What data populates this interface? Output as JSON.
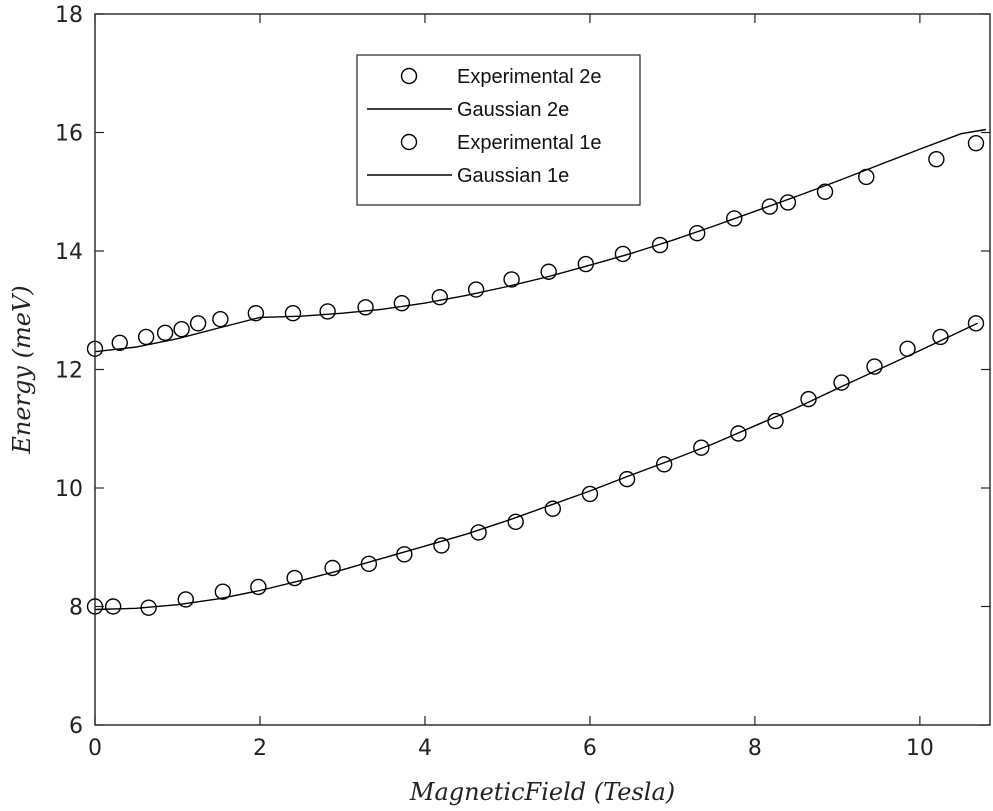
{
  "chart_data": {
    "type": "scatter",
    "xlabel": "MagneticField (Tesla)",
    "ylabel": "Energy (meV)",
    "xlim": [
      0,
      10.85
    ],
    "ylim": [
      6,
      18
    ],
    "xticks": [
      0,
      2,
      4,
      6,
      8,
      10
    ],
    "yticks": [
      6,
      8,
      10,
      12,
      14,
      16,
      18
    ],
    "grid": false,
    "legend_position": "top-center",
    "series": [
      {
        "name": "Experimental 2e",
        "style": "markers",
        "marker": "open-circle",
        "color": "#000000",
        "x": [
          0.0,
          0.3,
          0.62,
          0.85,
          1.05,
          1.25,
          1.52,
          1.95,
          2.4,
          2.82,
          3.28,
          3.72,
          4.18,
          4.62,
          5.05,
          5.5,
          5.95,
          6.4,
          6.85,
          7.3,
          7.75,
          8.18,
          8.4,
          8.85,
          9.35,
          10.2,
          10.68
        ],
        "y": [
          12.35,
          12.45,
          12.55,
          12.62,
          12.68,
          12.78,
          12.85,
          12.95,
          12.95,
          12.98,
          13.05,
          13.12,
          13.22,
          13.35,
          13.52,
          13.65,
          13.78,
          13.95,
          14.1,
          14.3,
          14.55,
          14.75,
          14.82,
          15.0,
          15.25,
          15.55,
          15.82
        ]
      },
      {
        "name": "Gaussian 2e",
        "style": "line",
        "color": "#000000",
        "x": [
          0,
          0.5,
          1.0,
          1.5,
          2.0,
          2.5,
          3.0,
          3.5,
          4.0,
          4.5,
          5.0,
          5.5,
          6.0,
          6.5,
          7.0,
          7.5,
          8.0,
          8.5,
          9.0,
          9.5,
          10.0,
          10.5,
          10.8
        ],
        "y": [
          12.3,
          12.38,
          12.52,
          12.7,
          12.88,
          12.9,
          12.95,
          13.02,
          13.12,
          13.25,
          13.4,
          13.57,
          13.76,
          13.96,
          14.18,
          14.42,
          14.67,
          14.92,
          15.18,
          15.45,
          15.72,
          15.98,
          16.05
        ]
      },
      {
        "name": "Experimental 1e",
        "style": "markers",
        "marker": "open-circle",
        "color": "#000000",
        "x": [
          0.0,
          0.22,
          0.65,
          1.1,
          1.55,
          1.98,
          2.42,
          2.88,
          3.32,
          3.75,
          4.2,
          4.65,
          5.1,
          5.55,
          6.0,
          6.45,
          6.9,
          7.35,
          7.8,
          8.25,
          8.65,
          9.05,
          9.45,
          9.85,
          10.25,
          10.68
        ],
        "y": [
          8.0,
          8.0,
          7.98,
          8.12,
          8.25,
          8.33,
          8.48,
          8.65,
          8.72,
          8.88,
          9.03,
          9.25,
          9.43,
          9.65,
          9.9,
          10.15,
          10.4,
          10.68,
          10.92,
          11.13,
          11.5,
          11.78,
          12.05,
          12.35,
          12.55,
          12.78
        ]
      },
      {
        "name": "Gaussian 1e",
        "style": "line",
        "color": "#000000",
        "x": [
          0,
          0.5,
          1.0,
          1.5,
          2.0,
          2.5,
          3.0,
          3.5,
          4.0,
          4.5,
          5.0,
          5.5,
          6.0,
          6.5,
          7.0,
          7.5,
          8.0,
          8.5,
          9.0,
          9.5,
          10.0,
          10.5,
          10.7
        ],
        "y": [
          7.95,
          7.97,
          8.03,
          8.13,
          8.27,
          8.44,
          8.62,
          8.82,
          9.02,
          9.22,
          9.45,
          9.7,
          9.95,
          10.22,
          10.48,
          10.75,
          11.05,
          11.35,
          11.68,
          12.0,
          12.32,
          12.65,
          12.78
        ]
      }
    ]
  }
}
